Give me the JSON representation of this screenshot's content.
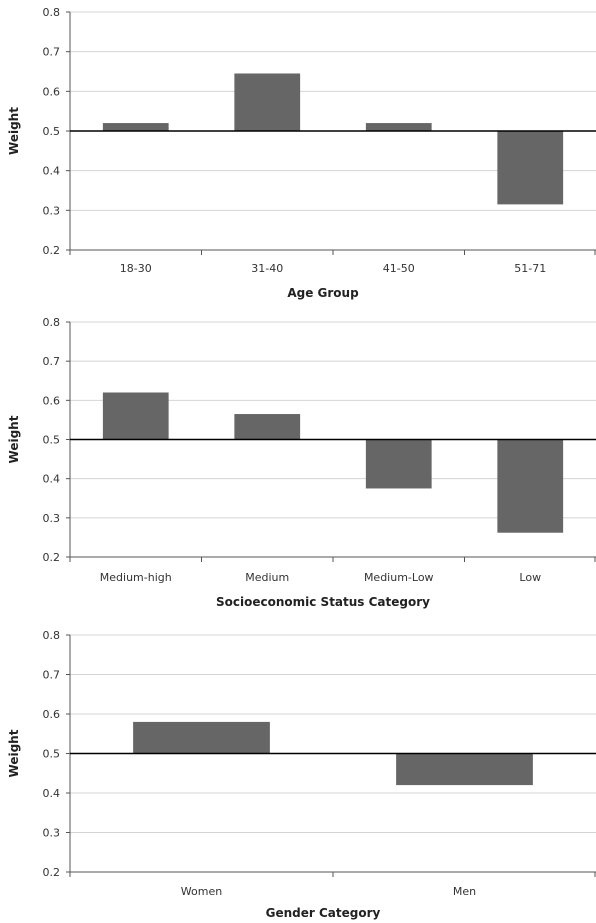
{
  "chart_data": [
    {
      "type": "bar",
      "title": "",
      "xlabel": "Age Group",
      "ylabel": "Weight",
      "ylim": [
        0.2,
        0.8
      ],
      "yticks": [
        0.2,
        0.3,
        0.4,
        0.5,
        0.6,
        0.7,
        0.8
      ],
      "ytick_labels": [
        "0.2",
        "0.3",
        "0.4",
        "0.5",
        "0.6",
        "0.7",
        "0.8"
      ],
      "baseline": 0.5,
      "grid": true,
      "bar_color": "#666666",
      "categories": [
        "18-30",
        "31-40",
        "41-50",
        "51-71"
      ],
      "values": [
        0.52,
        0.645,
        0.52,
        0.315
      ]
    },
    {
      "type": "bar",
      "title": "",
      "xlabel": "Socioeconomic Status Category",
      "ylabel": "Weight",
      "ylim": [
        0.2,
        0.8
      ],
      "yticks": [
        0.2,
        0.3,
        0.4,
        0.5,
        0.6,
        0.7,
        0.8
      ],
      "ytick_labels": [
        "0.2",
        "0.3",
        "0.4",
        "0.5",
        "0.6",
        "0.7",
        "0.8"
      ],
      "baseline": 0.5,
      "grid": true,
      "bar_color": "#666666",
      "categories": [
        "Medium-high",
        "Medium",
        "Medium-Low",
        "Low"
      ],
      "values": [
        0.62,
        0.565,
        0.375,
        0.262
      ]
    },
    {
      "type": "bar",
      "title": "",
      "xlabel": "Gender Category",
      "ylabel": "Weight",
      "ylim": [
        0.2,
        0.8
      ],
      "yticks": [
        0.2,
        0.3,
        0.4,
        0.5,
        0.6,
        0.7,
        0.8
      ],
      "ytick_labels": [
        "0.2",
        "0.3",
        "0.4",
        "0.5",
        "0.6",
        "0.7",
        "0.8"
      ],
      "baseline": 0.5,
      "grid": true,
      "bar_color": "#666666",
      "categories": [
        "Women",
        "Men"
      ],
      "values": [
        0.58,
        0.42
      ]
    }
  ]
}
